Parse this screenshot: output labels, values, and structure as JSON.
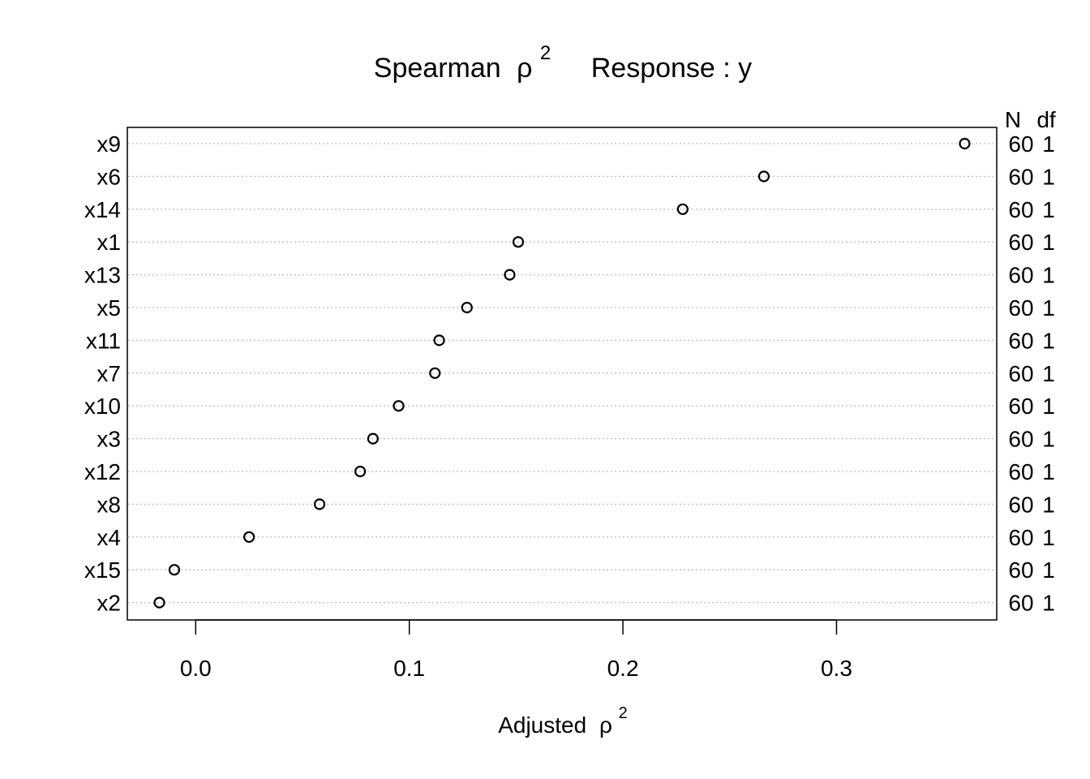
{
  "chart_data": {
    "type": "scatter",
    "title_parts": {
      "left_text": "Spearman",
      "symbol": "ρ",
      "exponent": "2",
      "right_text": "Response : y"
    },
    "xlabel_parts": {
      "text": "Adjusted",
      "symbol": "ρ",
      "exponent": "2"
    },
    "xlim": [
      -0.032,
      0.375
    ],
    "xticks": [
      0.0,
      0.1,
      0.2,
      0.3
    ],
    "xtick_labels": [
      "0.0",
      "0.1",
      "0.2",
      "0.3"
    ],
    "right_headers": {
      "n": "N",
      "df": "df"
    },
    "categories": [
      "x9",
      "x6",
      "x14",
      "x1",
      "x13",
      "x5",
      "x11",
      "x7",
      "x10",
      "x3",
      "x12",
      "x8",
      "x4",
      "x15",
      "x2"
    ],
    "values": [
      0.36,
      0.266,
      0.228,
      0.151,
      0.147,
      0.127,
      0.114,
      0.112,
      0.095,
      0.083,
      0.077,
      0.058,
      0.025,
      -0.01,
      -0.017
    ],
    "n": [
      "60",
      "60",
      "60",
      "60",
      "60",
      "60",
      "60",
      "60",
      "60",
      "60",
      "60",
      "60",
      "60",
      "60",
      "60"
    ],
    "df": [
      "1",
      "1",
      "1",
      "1",
      "1",
      "1",
      "1",
      "1",
      "1",
      "1",
      "1",
      "1",
      "1",
      "1",
      "1"
    ],
    "grid": true,
    "point_style": "open-circle"
  }
}
